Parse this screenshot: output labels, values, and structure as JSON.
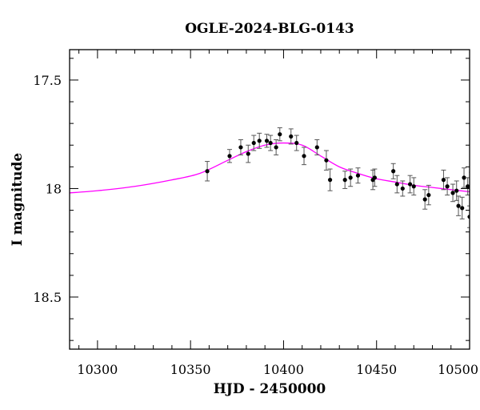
{
  "chart_data": {
    "type": "scatter",
    "title": "OGLE-2024-BLG-0143",
    "xlabel": "HJD - 2450000",
    "ylabel": "I magnitude",
    "xlim": [
      10285,
      10500
    ],
    "ylim": [
      18.74,
      17.36
    ],
    "y_inverted": true,
    "x_ticks": [
      10300,
      10350,
      10400,
      10450,
      10500
    ],
    "x_tick_labels": [
      "10300",
      "10350",
      "10400",
      "10450",
      "10500"
    ],
    "y_ticks": [
      17.5,
      18.0,
      18.5
    ],
    "y_tick_labels": [
      "17.5",
      "18",
      "18.5"
    ],
    "x_minor_step": 10,
    "y_minor_step": 0.1,
    "grid": false,
    "series": [
      {
        "kind": "points_with_errorbars",
        "color": "#000000",
        "points": [
          {
            "x": 10359,
            "y": 17.92,
            "err": 0.045
          },
          {
            "x": 10371,
            "y": 17.85,
            "err": 0.03
          },
          {
            "x": 10377,
            "y": 17.81,
            "err": 0.035
          },
          {
            "x": 10381,
            "y": 17.84,
            "err": 0.04
          },
          {
            "x": 10384,
            "y": 17.79,
            "err": 0.035
          },
          {
            "x": 10387,
            "y": 17.78,
            "err": 0.035
          },
          {
            "x": 10391,
            "y": 17.78,
            "err": 0.03
          },
          {
            "x": 10393,
            "y": 17.79,
            "err": 0.035
          },
          {
            "x": 10396,
            "y": 17.81,
            "err": 0.035
          },
          {
            "x": 10398,
            "y": 17.75,
            "err": 0.03
          },
          {
            "x": 10404,
            "y": 17.76,
            "err": 0.035
          },
          {
            "x": 10407,
            "y": 17.79,
            "err": 0.035
          },
          {
            "x": 10411,
            "y": 17.85,
            "err": 0.04
          },
          {
            "x": 10418,
            "y": 17.81,
            "err": 0.035
          },
          {
            "x": 10423,
            "y": 17.87,
            "err": 0.045
          },
          {
            "x": 10425,
            "y": 17.96,
            "err": 0.05
          },
          {
            "x": 10433,
            "y": 17.96,
            "err": 0.04
          },
          {
            "x": 10436,
            "y": 17.95,
            "err": 0.04
          },
          {
            "x": 10440,
            "y": 17.94,
            "err": 0.035
          },
          {
            "x": 10448,
            "y": 17.96,
            "err": 0.045
          },
          {
            "x": 10449,
            "y": 17.95,
            "err": 0.04
          },
          {
            "x": 10459,
            "y": 17.92,
            "err": 0.035
          },
          {
            "x": 10461,
            "y": 17.98,
            "err": 0.04
          },
          {
            "x": 10464,
            "y": 18.0,
            "err": 0.035
          },
          {
            "x": 10468,
            "y": 17.98,
            "err": 0.04
          },
          {
            "x": 10470,
            "y": 17.99,
            "err": 0.04
          },
          {
            "x": 10476,
            "y": 18.05,
            "err": 0.045
          },
          {
            "x": 10478,
            "y": 18.03,
            "err": 0.045
          },
          {
            "x": 10486,
            "y": 17.96,
            "err": 0.045
          },
          {
            "x": 10488,
            "y": 17.99,
            "err": 0.04
          },
          {
            "x": 10491,
            "y": 18.02,
            "err": 0.04
          },
          {
            "x": 10493,
            "y": 18.01,
            "err": 0.045
          },
          {
            "x": 10494,
            "y": 18.08,
            "err": 0.045
          },
          {
            "x": 10496,
            "y": 18.09,
            "err": 0.05
          },
          {
            "x": 10497,
            "y": 17.95,
            "err": 0.045
          },
          {
            "x": 10499,
            "y": 17.99,
            "err": 0.04
          },
          {
            "x": 10500,
            "y": 18.13,
            "err": 0.05
          },
          {
            "x": 10501,
            "y": 17.97,
            "err": 0.045
          }
        ]
      },
      {
        "kind": "model_curve",
        "color": "#ff00ff",
        "x": [
          10285,
          10300,
          10320,
          10340,
          10355,
          10370,
          10380,
          10390,
          10400,
          10410,
          10420,
          10430,
          10440,
          10450,
          10460,
          10470,
          10480,
          10490,
          10500
        ],
        "y": [
          18.02,
          18.01,
          17.99,
          17.96,
          17.93,
          17.87,
          17.83,
          17.8,
          17.79,
          17.8,
          17.85,
          17.9,
          17.93,
          17.955,
          17.97,
          17.985,
          17.995,
          18.005,
          18.015
        ]
      }
    ]
  }
}
